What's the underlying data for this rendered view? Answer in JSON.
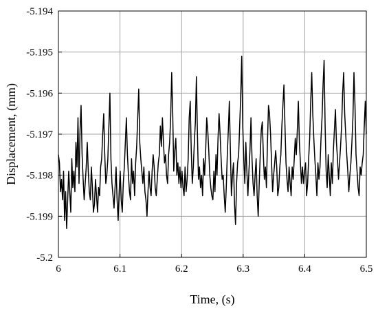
{
  "chart_data": {
    "type": "line",
    "title": "",
    "xlabel": "Time, (s)",
    "ylabel": "Displacement, (mm)",
    "xlim": [
      6.0,
      6.5
    ],
    "ylim": [
      -5.2,
      -5.194
    ],
    "x_ticks": [
      "6",
      "6.1",
      "6.2",
      "6.3",
      "6.4",
      "6.5"
    ],
    "y_ticks": [
      "-5.194",
      "-5.195",
      "-5.196",
      "-5.197",
      "-5.198",
      "-5.199",
      "-5.2"
    ],
    "grid": true,
    "line_color": "#000000",
    "series": [
      {
        "x_start": 6.0,
        "x_end": 6.5,
        "values": [
          -5.1975,
          -5.1977,
          -5.1984,
          -5.1981,
          -5.1986,
          -5.1979,
          -5.1991,
          -5.1984,
          -5.1993,
          -5.1986,
          -5.1979,
          -5.1984,
          -5.1989,
          -5.1976,
          -5.1983,
          -5.1979,
          -5.1984,
          -5.1972,
          -5.1978,
          -5.1966,
          -5.1982,
          -5.1969,
          -5.1963,
          -5.1975,
          -5.1981,
          -5.1986,
          -5.1982,
          -5.1978,
          -5.1972,
          -5.1979,
          -5.1984,
          -5.1986,
          -5.1978,
          -5.1983,
          -5.1989,
          -5.1987,
          -5.1981,
          -5.1985,
          -5.1989,
          -5.1983,
          -5.1985,
          -5.1978,
          -5.1976,
          -5.197,
          -5.1965,
          -5.1975,
          -5.1982,
          -5.198,
          -5.1976,
          -5.1968,
          -5.196,
          -5.1976,
          -5.1982,
          -5.1985,
          -5.1988,
          -5.1983,
          -5.1978,
          -5.1986,
          -5.1991,
          -5.1984,
          -5.1979,
          -5.1986,
          -5.1989,
          -5.1982,
          -5.1978,
          -5.1972,
          -5.1966,
          -5.1975,
          -5.198,
          -5.1984,
          -5.1986,
          -5.1976,
          -5.1982,
          -5.1979,
          -5.1985,
          -5.1977,
          -5.1973,
          -5.1966,
          -5.1959,
          -5.1972,
          -5.1976,
          -5.1979,
          -5.1982,
          -5.1978,
          -5.1984,
          -5.1986,
          -5.199,
          -5.1984,
          -5.1979,
          -5.1983,
          -5.1985,
          -5.1979,
          -5.1975,
          -5.1978,
          -5.1983,
          -5.1985,
          -5.1981,
          -5.1977,
          -5.1975,
          -5.1968,
          -5.1973,
          -5.1966,
          -5.1972,
          -5.1977,
          -5.1975,
          -5.198,
          -5.1982,
          -5.1975,
          -5.1972,
          -5.1966,
          -5.1955,
          -5.1965,
          -5.1979,
          -5.1974,
          -5.1971,
          -5.198,
          -5.1977,
          -5.1982,
          -5.1978,
          -5.1983,
          -5.1979,
          -5.1983,
          -5.1985,
          -5.1978,
          -5.1984,
          -5.1981,
          -5.1976,
          -5.1966,
          -5.1962,
          -5.1974,
          -5.1982,
          -5.1978,
          -5.1972,
          -5.1967,
          -5.1956,
          -5.197,
          -5.1981,
          -5.1978,
          -5.1983,
          -5.198,
          -5.1985,
          -5.1976,
          -5.198,
          -5.1974,
          -5.1966,
          -5.1969,
          -5.1974,
          -5.198,
          -5.1983,
          -5.1985,
          -5.1986,
          -5.1979,
          -5.1984,
          -5.1975,
          -5.198,
          -5.1971,
          -5.1965,
          -5.197,
          -5.1976,
          -5.1981,
          -5.198,
          -5.1985,
          -5.1989,
          -5.1983,
          -5.1975,
          -5.1969,
          -5.1962,
          -5.1974,
          -5.1985,
          -5.198,
          -5.1977,
          -5.1987,
          -5.1992,
          -5.1982,
          -5.1977,
          -5.1975,
          -5.1968,
          -5.1961,
          -5.1951,
          -5.1968,
          -5.1976,
          -5.1982,
          -5.1972,
          -5.1979,
          -5.1985,
          -5.1979,
          -5.1974,
          -5.1966,
          -5.1976,
          -5.1982,
          -5.1985,
          -5.198,
          -5.1976,
          -5.1985,
          -5.199,
          -5.1982,
          -5.1975,
          -5.1969,
          -5.1967,
          -5.1975,
          -5.1981,
          -5.1978,
          -5.1983,
          -5.1972,
          -5.1963,
          -5.1965,
          -5.197,
          -5.1977,
          -5.1984,
          -5.198,
          -5.1977,
          -5.1974,
          -5.1978,
          -5.1985,
          -5.1983,
          -5.1978,
          -5.1975,
          -5.1968,
          -5.1963,
          -5.1958,
          -5.1968,
          -5.1977,
          -5.1981,
          -5.1984,
          -5.1978,
          -5.1982,
          -5.1985,
          -5.1978,
          -5.1981,
          -5.1976,
          -5.1971,
          -5.1975,
          -5.1969,
          -5.1962,
          -5.1972,
          -5.1977,
          -5.1982,
          -5.1978,
          -5.1982,
          -5.1979,
          -5.1977,
          -5.1985,
          -5.1982,
          -5.1976,
          -5.1971,
          -5.1962,
          -5.1955,
          -5.1965,
          -5.1971,
          -5.1976,
          -5.198,
          -5.1985,
          -5.1977,
          -5.1981,
          -5.1978,
          -5.1971,
          -5.1966,
          -5.1958,
          -5.1952,
          -5.1968,
          -5.1979,
          -5.1983,
          -5.1975,
          -5.198,
          -5.1985,
          -5.1977,
          -5.1982,
          -5.1974,
          -5.1969,
          -5.1964,
          -5.1972,
          -5.1976,
          -5.1981,
          -5.1977,
          -5.1973,
          -5.1968,
          -5.196,
          -5.1955,
          -5.1965,
          -5.197,
          -5.1975,
          -5.1979,
          -5.1984,
          -5.198,
          -5.1977,
          -5.1972,
          -5.1966,
          -5.1955,
          -5.1963,
          -5.1975,
          -5.1979,
          -5.1983,
          -5.1985,
          -5.1978,
          -5.198,
          -5.1977,
          -5.1975,
          -5.1968,
          -5.1962,
          -5.197
        ]
      }
    ]
  }
}
